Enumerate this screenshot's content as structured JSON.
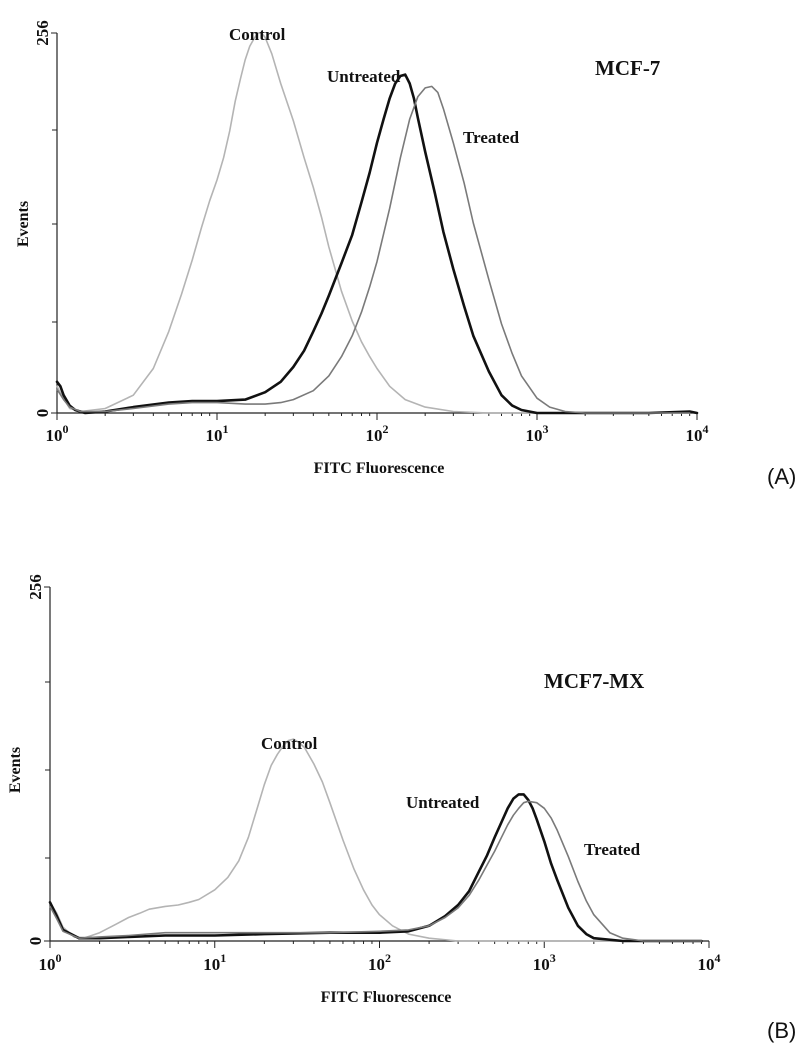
{
  "chart_data": [
    {
      "type": "line",
      "panel_label": "(A)",
      "title": "MCF-7",
      "xlabel": "FITC Fluorescence",
      "ylabel": "Events",
      "xscale": "log",
      "xlim": [
        1,
        10000
      ],
      "ylim": [
        0,
        256
      ],
      "x_ticks": [
        "10^0",
        "10^1",
        "10^2",
        "10^3",
        "10^4"
      ],
      "y_ticks": [
        "0",
        "256"
      ],
      "grid": false,
      "series": [
        {
          "name": "Control",
          "color": "#b4b4b4",
          "points": [
            [
              1.0,
              18
            ],
            [
              1.07,
              12
            ],
            [
              1.2,
              3
            ],
            [
              1.4,
              1
            ],
            [
              2,
              3
            ],
            [
              3,
              12
            ],
            [
              4,
              30
            ],
            [
              5,
              55
            ],
            [
              6,
              80
            ],
            [
              7,
              103
            ],
            [
              8,
              125
            ],
            [
              9,
              143
            ],
            [
              10,
              157
            ],
            [
              11,
              172
            ],
            [
              12,
              190
            ],
            [
              13,
              210
            ],
            [
              14,
              225
            ],
            [
              15,
              238
            ],
            [
              16,
              247
            ],
            [
              17,
              252
            ],
            [
              18,
              256
            ],
            [
              19,
              256
            ],
            [
              20,
              253
            ],
            [
              22,
              242
            ],
            [
              25,
              222
            ],
            [
              30,
              197
            ],
            [
              35,
              172
            ],
            [
              40,
              152
            ],
            [
              45,
              132
            ],
            [
              50,
              112
            ],
            [
              60,
              82
            ],
            [
              70,
              62
            ],
            [
              80,
              48
            ],
            [
              90,
              38
            ],
            [
              100,
              30
            ],
            [
              120,
              18
            ],
            [
              150,
              9
            ],
            [
              200,
              4
            ],
            [
              300,
              1
            ],
            [
              500,
              0
            ],
            [
              1000,
              0
            ],
            [
              2000,
              0
            ],
            [
              5000,
              0
            ],
            [
              9000,
              0
            ]
          ]
        },
        {
          "name": "Untreated",
          "color": "#111111",
          "points": [
            [
              1.0,
              21
            ],
            [
              1.05,
              18
            ],
            [
              1.1,
              12
            ],
            [
              1.2,
              5
            ],
            [
              1.3,
              2
            ],
            [
              1.5,
              0
            ],
            [
              2,
              1
            ],
            [
              3,
              4
            ],
            [
              5,
              7
            ],
            [
              7,
              8
            ],
            [
              10,
              8
            ],
            [
              15,
              9
            ],
            [
              20,
              14
            ],
            [
              25,
              21
            ],
            [
              30,
              31
            ],
            [
              35,
              42
            ],
            [
              40,
              55
            ],
            [
              45,
              67
            ],
            [
              50,
              79
            ],
            [
              60,
              101
            ],
            [
              70,
              120
            ],
            [
              80,
              142
            ],
            [
              90,
              162
            ],
            [
              100,
              182
            ],
            [
              110,
              198
            ],
            [
              120,
              212
            ],
            [
              130,
              222
            ],
            [
              140,
              227
            ],
            [
              150,
              228
            ],
            [
              160,
              222
            ],
            [
              170,
              212
            ],
            [
              180,
              199
            ],
            [
              200,
              176
            ],
            [
              230,
              148
            ],
            [
              260,
              122
            ],
            [
              300,
              97
            ],
            [
              350,
              72
            ],
            [
              400,
              52
            ],
            [
              500,
              28
            ],
            [
              600,
              12
            ],
            [
              700,
              5
            ],
            [
              800,
              2
            ],
            [
              1000,
              0
            ],
            [
              2000,
              0
            ],
            [
              5000,
              0
            ],
            [
              9000,
              1
            ],
            [
              10000,
              0
            ]
          ]
        },
        {
          "name": "Treated",
          "color": "#7a7a7a",
          "points": [
            [
              1.0,
              16
            ],
            [
              1.1,
              9
            ],
            [
              1.2,
              4
            ],
            [
              1.4,
              1
            ],
            [
              2,
              1
            ],
            [
              3,
              3
            ],
            [
              5,
              6
            ],
            [
              7,
              7
            ],
            [
              10,
              7
            ],
            [
              15,
              6
            ],
            [
              20,
              6
            ],
            [
              25,
              7
            ],
            [
              30,
              9
            ],
            [
              40,
              15
            ],
            [
              50,
              25
            ],
            [
              60,
              38
            ],
            [
              70,
              52
            ],
            [
              80,
              68
            ],
            [
              90,
              85
            ],
            [
              100,
              102
            ],
            [
              120,
              138
            ],
            [
              140,
              172
            ],
            [
              160,
              198
            ],
            [
              180,
              213
            ],
            [
              200,
              219
            ],
            [
              220,
              220
            ],
            [
              240,
              216
            ],
            [
              260,
              205
            ],
            [
              300,
              182
            ],
            [
              350,
              155
            ],
            [
              400,
              128
            ],
            [
              500,
              90
            ],
            [
              600,
              60
            ],
            [
              700,
              40
            ],
            [
              800,
              25
            ],
            [
              1000,
              10
            ],
            [
              1200,
              4
            ],
            [
              1500,
              1
            ],
            [
              2000,
              0
            ],
            [
              5000,
              0
            ],
            [
              9000,
              0
            ]
          ]
        }
      ]
    },
    {
      "type": "line",
      "panel_label": "(B)",
      "title": "MCF7-MX",
      "xlabel": "FITC Fluorescence",
      "ylabel": "Events",
      "xscale": "log",
      "xlim": [
        1,
        10000
      ],
      "ylim": [
        0,
        256
      ],
      "x_ticks": [
        "10^0",
        "10^1",
        "10^2",
        "10^3",
        "10^4"
      ],
      "y_ticks": [
        "0",
        "256"
      ],
      "grid": false,
      "series": [
        {
          "name": "Control",
          "color": "#b4b4b4",
          "points": [
            [
              1.0,
              28
            ],
            [
              1.1,
              20
            ],
            [
              1.2,
              10
            ],
            [
              1.4,
              3
            ],
            [
              1.6,
              2
            ],
            [
              2,
              6
            ],
            [
              2.5,
              12
            ],
            [
              3,
              17
            ],
            [
              3.5,
              20
            ],
            [
              4,
              23
            ],
            [
              5,
              25
            ],
            [
              6,
              26
            ],
            [
              7,
              28
            ],
            [
              8,
              30
            ],
            [
              10,
              37
            ],
            [
              12,
              46
            ],
            [
              14,
              58
            ],
            [
              16,
              75
            ],
            [
              18,
              95
            ],
            [
              20,
              113
            ],
            [
              22,
              127
            ],
            [
              24,
              135
            ],
            [
              26,
              141
            ],
            [
              28,
              145
            ],
            [
              30,
              146
            ],
            [
              32,
              144
            ],
            [
              35,
              140
            ],
            [
              40,
              128
            ],
            [
              45,
              115
            ],
            [
              50,
              100
            ],
            [
              60,
              73
            ],
            [
              70,
              52
            ],
            [
              80,
              37
            ],
            [
              90,
              26
            ],
            [
              100,
              19
            ],
            [
              120,
              11
            ],
            [
              150,
              5
            ],
            [
              200,
              2
            ],
            [
              300,
              0
            ],
            [
              1000,
              0
            ],
            [
              9000,
              0
            ]
          ]
        },
        {
          "name": "Untreated",
          "color": "#111111",
          "points": [
            [
              1.0,
              28
            ],
            [
              1.1,
              18
            ],
            [
              1.2,
              8
            ],
            [
              1.5,
              2
            ],
            [
              2,
              2
            ],
            [
              3,
              3
            ],
            [
              5,
              4
            ],
            [
              10,
              4
            ],
            [
              20,
              5
            ],
            [
              50,
              6
            ],
            [
              100,
              6
            ],
            [
              150,
              7
            ],
            [
              200,
              11
            ],
            [
              250,
              18
            ],
            [
              300,
              26
            ],
            [
              350,
              36
            ],
            [
              400,
              50
            ],
            [
              450,
              62
            ],
            [
              500,
              75
            ],
            [
              550,
              86
            ],
            [
              600,
              96
            ],
            [
              650,
              103
            ],
            [
              700,
              106
            ],
            [
              750,
              106
            ],
            [
              800,
              102
            ],
            [
              850,
              96
            ],
            [
              900,
              88
            ],
            [
              1000,
              72
            ],
            [
              1100,
              56
            ],
            [
              1200,
              44
            ],
            [
              1400,
              24
            ],
            [
              1600,
              11
            ],
            [
              1800,
              5
            ],
            [
              2000,
              2
            ],
            [
              3000,
              0
            ],
            [
              9000,
              0
            ]
          ]
        },
        {
          "name": "Treated",
          "color": "#7a7a7a",
          "points": [
            [
              1.0,
              25
            ],
            [
              1.1,
              16
            ],
            [
              1.2,
              7
            ],
            [
              1.5,
              2
            ],
            [
              2,
              3
            ],
            [
              3,
              4
            ],
            [
              5,
              6
            ],
            [
              10,
              6
            ],
            [
              20,
              6
            ],
            [
              50,
              6
            ],
            [
              100,
              7
            ],
            [
              150,
              8
            ],
            [
              200,
              11
            ],
            [
              250,
              17
            ],
            [
              300,
              24
            ],
            [
              350,
              33
            ],
            [
              400,
              44
            ],
            [
              450,
              55
            ],
            [
              500,
              65
            ],
            [
              550,
              75
            ],
            [
              600,
              84
            ],
            [
              650,
              91
            ],
            [
              700,
              96
            ],
            [
              750,
              100
            ],
            [
              800,
              101
            ],
            [
              900,
              100
            ],
            [
              1000,
              96
            ],
            [
              1100,
              89
            ],
            [
              1200,
              80
            ],
            [
              1400,
              61
            ],
            [
              1600,
              43
            ],
            [
              1800,
              29
            ],
            [
              2000,
              19
            ],
            [
              2500,
              6
            ],
            [
              3000,
              2
            ],
            [
              4000,
              0
            ],
            [
              9000,
              0
            ]
          ]
        }
      ]
    }
  ]
}
